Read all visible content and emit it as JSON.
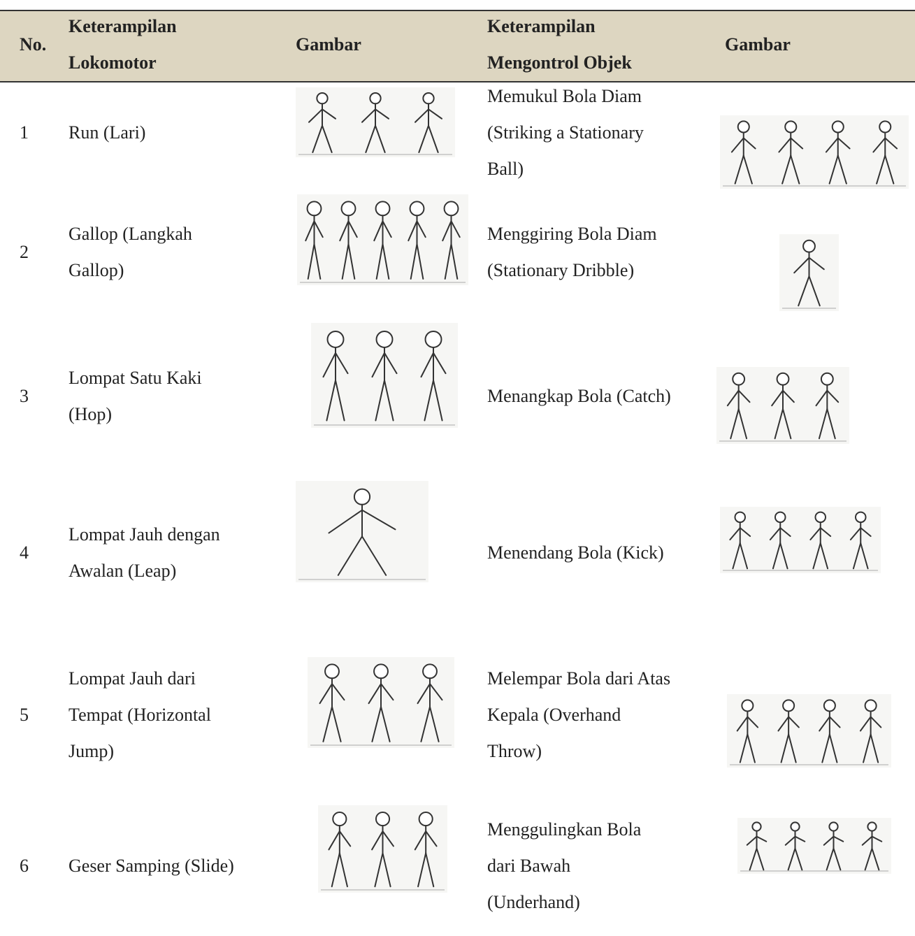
{
  "table": {
    "header": {
      "no": "No.",
      "lokomotor": [
        "Keterampilan",
        "Lokomotor"
      ],
      "gambar1": "Gambar",
      "objek": [
        "Keterampilan",
        "Mengontrol Objek"
      ],
      "gambar2": "Gambar"
    },
    "rows": [
      {
        "no": "1",
        "lokomotor": [
          "Run (Lari)"
        ],
        "objek": [
          "Memukul Bola Diam",
          "(Striking a Stationary",
          "Ball)"
        ]
      },
      {
        "no": "2",
        "lokomotor": [
          "Gallop (Langkah",
          "Gallop)"
        ],
        "objek": [
          "Menggiring Bola Diam",
          "(Stationary Dribble)"
        ]
      },
      {
        "no": "3",
        "lokomotor": [
          "Lompat Satu Kaki",
          "(Hop)"
        ],
        "objek": [
          "Menangkap Bola (Catch)"
        ]
      },
      {
        "no": "4",
        "lokomotor": [
          "Lompat Jauh dengan",
          "Awalan (Leap)"
        ],
        "objek": [
          "Menendang Bola (Kick)"
        ]
      },
      {
        "no": "5",
        "lokomotor": [
          "Lompat Jauh dari",
          "Tempat (Horizontal",
          "Jump)"
        ],
        "objek": [
          "Melempar Bola dari Atas",
          "Kepala (Overhand",
          "Throw)"
        ]
      },
      {
        "no": "6",
        "lokomotor": [
          "Geser Samping (Slide)"
        ],
        "objek": [
          "Menggulingkan Bola",
          "dari Bawah",
          "(Underhand)"
        ]
      }
    ]
  }
}
